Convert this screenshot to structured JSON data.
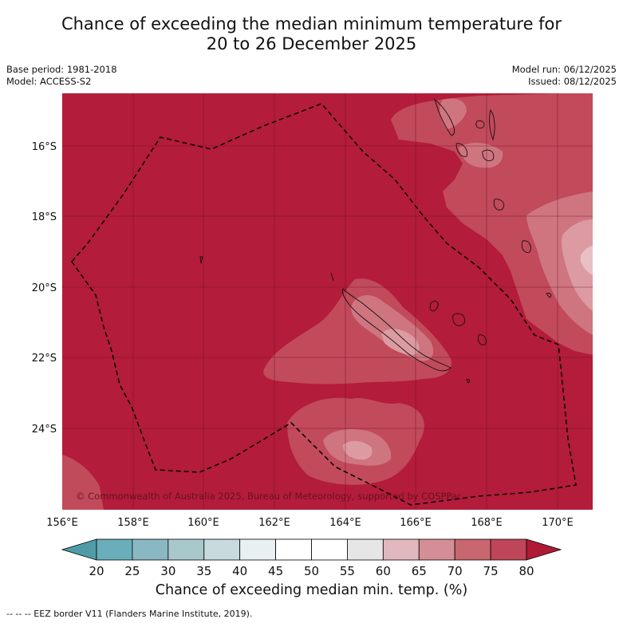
{
  "title": {
    "line1": "Chance of exceeding the median minimum temperature for",
    "line2": "20 to 26 December 2025"
  },
  "meta": {
    "base_period": "Base period: 1981-2018",
    "model": "Model: ACCESS-S2",
    "model_run": "Model run: 06/12/2025",
    "issued": "Issued: 08/12/2025"
  },
  "map": {
    "lat_labels": [
      "16°S",
      "18°S",
      "20°S",
      "22°S",
      "24°S"
    ],
    "lon_labels": [
      "156°E",
      "158°E",
      "160°E",
      "162°E",
      "164°E",
      "166°E",
      "168°E",
      "170°E"
    ],
    "copyright": "© Commonwealth of Australia 2025, Bureau of Meteorology, supported by COSPPac",
    "colors": {
      "c80": "#b31c3a",
      "c75": "#c14a5b",
      "c70": "#cf7580",
      "c65": "#dc9ba2",
      "c60": "#e8c0c4",
      "c55": "#ebebeb"
    }
  },
  "colorbar": {
    "ticks": [
      "20",
      "25",
      "30",
      "35",
      "40",
      "45",
      "50",
      "55",
      "60",
      "65",
      "70",
      "75",
      "80"
    ],
    "colors": [
      "#4f9ca8",
      "#6aaebb",
      "#8ab8c2",
      "#a8c8cc",
      "#c8dadd",
      "#e9f0f1",
      "#ffffff",
      "#ffffff",
      "#e6e6e6",
      "#e1b8bd",
      "#d48e96",
      "#c86770",
      "#bf4658",
      "#b01a36"
    ],
    "label": "Chance of exceeding median min. temp. (%)"
  },
  "footer": {
    "legend": "--  --  -- EEZ border V11 (Flanders Marine Institute, 2019)."
  }
}
